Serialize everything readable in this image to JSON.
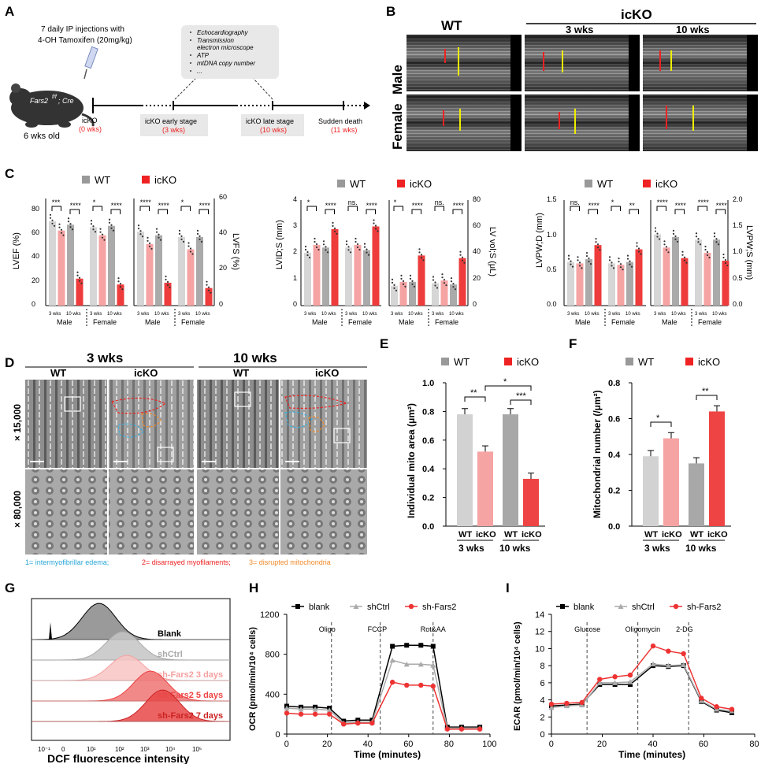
{
  "panels": {
    "A": "A",
    "B": "B",
    "C": "C",
    "D": "D",
    "E": "E",
    "F": "F",
    "G": "G",
    "H": "H",
    "I": "I"
  },
  "panelA": {
    "mouse_label": "Fars2",
    "mouse_superscript": "f/f",
    "mouse_cre": "; Cre",
    "age": "6 wks old",
    "injection_line1": "7 daily IP injections with",
    "injection_line2": "4-OH Tamoxifen (20mg/kg)",
    "assays": [
      "Echocardiography",
      "Transmission",
      "electron microscope",
      "ATP",
      "mtDNA copy number",
      "..."
    ],
    "stages": [
      {
        "label": "icKO",
        "time": "(0 wks)"
      },
      {
        "label": "icKO early stage",
        "time": "(3 wks)"
      },
      {
        "label": "icKO late stage",
        "time": "(10 wks)"
      },
      {
        "label": "Sudden death",
        "time": "(11 wks)"
      }
    ]
  },
  "panelB": {
    "wt": "WT",
    "icko": "icKO",
    "wk3": "3 wks",
    "wk10": "10 wks",
    "rows": [
      "Male",
      "Female"
    ]
  },
  "panelC": {
    "legend_wt": "WT",
    "legend_icko": "icKO",
    "sig": [
      "***",
      "****",
      "*",
      "****",
      "****",
      "****",
      "*",
      "****",
      "*",
      "****",
      "ns.",
      "****",
      "*",
      "****",
      "ns.",
      "****",
      "ns.",
      "****",
      "*",
      "**",
      "****",
      "****",
      "****",
      "****"
    ],
    "x_ticks": [
      "3 wks",
      "10 wks",
      "3 wks",
      "10 wks"
    ],
    "groups": [
      "Male",
      "Female"
    ],
    "charts": [
      {
        "left_label": "LVEF (%)",
        "left_ticks": [
          "0",
          "20",
          "40",
          "60",
          "80"
        ],
        "right_label": "LVFS (%)",
        "right_ticks": [
          "0",
          "20",
          "40",
          "60"
        ]
      },
      {
        "left_label": "LVID;S (mm)",
        "left_ticks": [
          "0",
          "1",
          "2",
          "3",
          "4"
        ],
        "right_label": "LV vol;S (μL)",
        "right_ticks": [
          "0",
          "20",
          "40",
          "60",
          "80"
        ]
      },
      {
        "left_label": "LVPW;D (mm)",
        "left_ticks": [
          "0.0",
          "0.5",
          "1.0",
          "1.5"
        ],
        "right_label": "LVPW;S (mm)",
        "right_ticks": [
          "0.0",
          "0.5",
          "1.0",
          "1.5",
          "2.0"
        ]
      }
    ]
  },
  "panelD": {
    "wk3": "3 wks",
    "wk10": "10 wks",
    "wt": "WT",
    "icko": "icKO",
    "mag1": "× 15,000",
    "mag2": "× 80,000",
    "legend1": "1= intermyofibrillar edema;",
    "legend2": "2= disarrayed myofilaments;",
    "legend3": "3= disrupted mitochondria"
  },
  "chart_data": [
    {
      "type": "bar",
      "panel": "E",
      "title": "",
      "legend": [
        "WT",
        "icKO"
      ],
      "categories": [
        "WT 3 wks",
        "icKO 3 wks",
        "WT 10 wks",
        "icKO 10 wks"
      ],
      "values": [
        0.78,
        0.52,
        0.78,
        0.33
      ],
      "ylabel": "Individual mito area (μm²)",
      "ylim": [
        0,
        1.0
      ],
      "yticks": [
        "0.0",
        "0.2",
        "0.4",
        "0.6",
        "0.8",
        "1.0"
      ],
      "xlabels": [
        "WT",
        "icKO",
        "WT",
        "icKO"
      ],
      "groups": [
        "3 wks",
        "10 wks"
      ],
      "sig": [
        "**",
        "***",
        "*"
      ]
    },
    {
      "type": "bar",
      "panel": "F",
      "legend": [
        "WT",
        "icKO"
      ],
      "categories": [
        "WT 3 wks",
        "icKO 3 wks",
        "WT 10 wks",
        "icKO 10 wks"
      ],
      "values": [
        0.39,
        0.49,
        0.35,
        0.64
      ],
      "ylabel": "Mitochondrial number (/μm²)",
      "ylim": [
        0,
        0.8
      ],
      "yticks": [
        "0.0",
        "0.2",
        "0.4",
        "0.6",
        "0.8"
      ],
      "xlabels": [
        "WT",
        "icKO",
        "WT",
        "icKO"
      ],
      "groups": [
        "3 wks",
        "10 wks"
      ],
      "sig": [
        "*",
        "**"
      ]
    },
    {
      "type": "area",
      "panel": "G",
      "xlabel": "DCF fluorescence intensity",
      "xticks": [
        "10⁻¹",
        "0",
        "10¹",
        "10²",
        "10³",
        "10⁴",
        "10⁵"
      ],
      "series": [
        "Blank",
        "shCtrl",
        "sh-Fars2 3 days",
        "sh-Fars2 5 days",
        "sh-Fars2 7 days"
      ]
    },
    {
      "type": "line",
      "panel": "H",
      "ylabel": "OCR (pmol/min/10⁴ cells)",
      "xlabel": "Time (minutes)",
      "xlim": [
        0,
        100
      ],
      "ylim": [
        0,
        1200
      ],
      "xticks": [
        "0",
        "20",
        "40",
        "60",
        "80",
        "100"
      ],
      "yticks": [
        "0",
        "400",
        "800",
        "1200"
      ],
      "injections": [
        "Oligo",
        "FCCP",
        "Rot&AA"
      ],
      "injection_times": [
        22,
        46,
        72
      ],
      "x": [
        0,
        7,
        14,
        21,
        28,
        35,
        42,
        52,
        59,
        66,
        72,
        79,
        86,
        95
      ],
      "series": [
        {
          "name": "blank",
          "values": [
            280,
            270,
            270,
            260,
            130,
            140,
            140,
            880,
            890,
            890,
            880,
            70,
            70,
            70
          ]
        },
        {
          "name": "shCtrl",
          "values": [
            260,
            250,
            250,
            240,
            110,
            120,
            120,
            740,
            700,
            700,
            690,
            60,
            60,
            60
          ]
        },
        {
          "name": "sh-Fars2",
          "values": [
            210,
            200,
            200,
            200,
            100,
            110,
            110,
            520,
            490,
            490,
            480,
            50,
            50,
            50
          ]
        }
      ]
    },
    {
      "type": "line",
      "panel": "I",
      "ylabel": "ECAR (pmol/min/10⁴ cells)",
      "xlabel": "Time (minutes)",
      "xlim": [
        0,
        80
      ],
      "ylim": [
        0,
        14
      ],
      "xticks": [
        "0",
        "20",
        "40",
        "60",
        "80"
      ],
      "yticks": [
        "0",
        "2",
        "4",
        "6",
        "8",
        "10",
        "12",
        "14"
      ],
      "injections": [
        "Glucose",
        "Oligomycin",
        "2-DG"
      ],
      "injection_times": [
        14,
        34,
        54
      ],
      "x": [
        0,
        6,
        12,
        19,
        25,
        31,
        40,
        46,
        52,
        59,
        65,
        71
      ],
      "series": [
        {
          "name": "blank",
          "values": [
            3.3,
            3.4,
            3.5,
            5.8,
            5.8,
            5.8,
            8.0,
            7.9,
            8.0,
            3.8,
            2.8,
            2.5
          ]
        },
        {
          "name": "shCtrl",
          "values": [
            3.1,
            3.3,
            3.4,
            6.0,
            6.0,
            6.1,
            8.2,
            8.0,
            8.1,
            3.9,
            2.9,
            2.7
          ]
        },
        {
          "name": "sh-Fars2",
          "values": [
            3.5,
            3.6,
            3.7,
            6.4,
            6.7,
            6.9,
            10.3,
            9.7,
            9.4,
            4.2,
            3.2,
            2.9
          ]
        }
      ]
    }
  ],
  "colors": {
    "wt": "#999999",
    "icko": "#ee2222",
    "blank": "#000000",
    "shctrl": "#aaaaaa",
    "shfars": "#ee3333"
  }
}
